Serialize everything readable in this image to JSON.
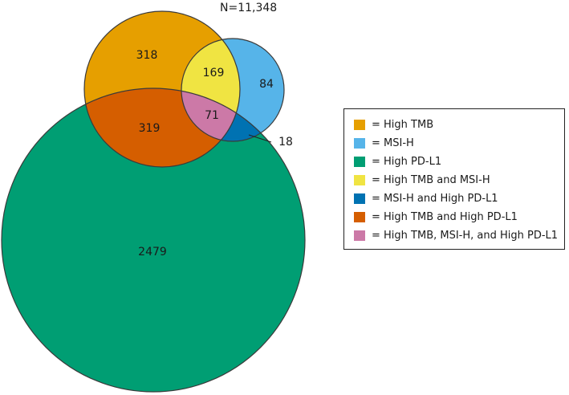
{
  "total": "N=11,348",
  "colors": {
    "high_tmb": "#E69F00",
    "msi_h": "#56B4E9",
    "high_pdl1": "#009E73",
    "tmb_msi": "#F0E442",
    "msi_pdl1": "#0072B2",
    "tmb_pdl1": "#D55E00",
    "all_three": "#CC79A7"
  },
  "regions": {
    "tmb_only": "318",
    "tmb_msi": "169",
    "msi_only": "84",
    "all_three": "71",
    "tmb_pdl1": "319",
    "msi_pdl1": "18",
    "pdl1_only": "2479"
  },
  "legend": [
    {
      "label": "= High TMB",
      "color": "#E69F00"
    },
    {
      "label": "= MSI-H",
      "color": "#56B4E9"
    },
    {
      "label": "= High PD-L1",
      "color": "#009E73"
    },
    {
      "label": "= High TMB and MSI-H",
      "color": "#F0E442"
    },
    {
      "label": "= MSI-H and High PD-L1",
      "color": "#0072B2"
    },
    {
      "label": "= High TMB and High PD-L1",
      "color": "#D55E00"
    },
    {
      "label": "= High TMB, MSI-H, and High PD-L1",
      "color": "#CC79A7"
    }
  ]
}
